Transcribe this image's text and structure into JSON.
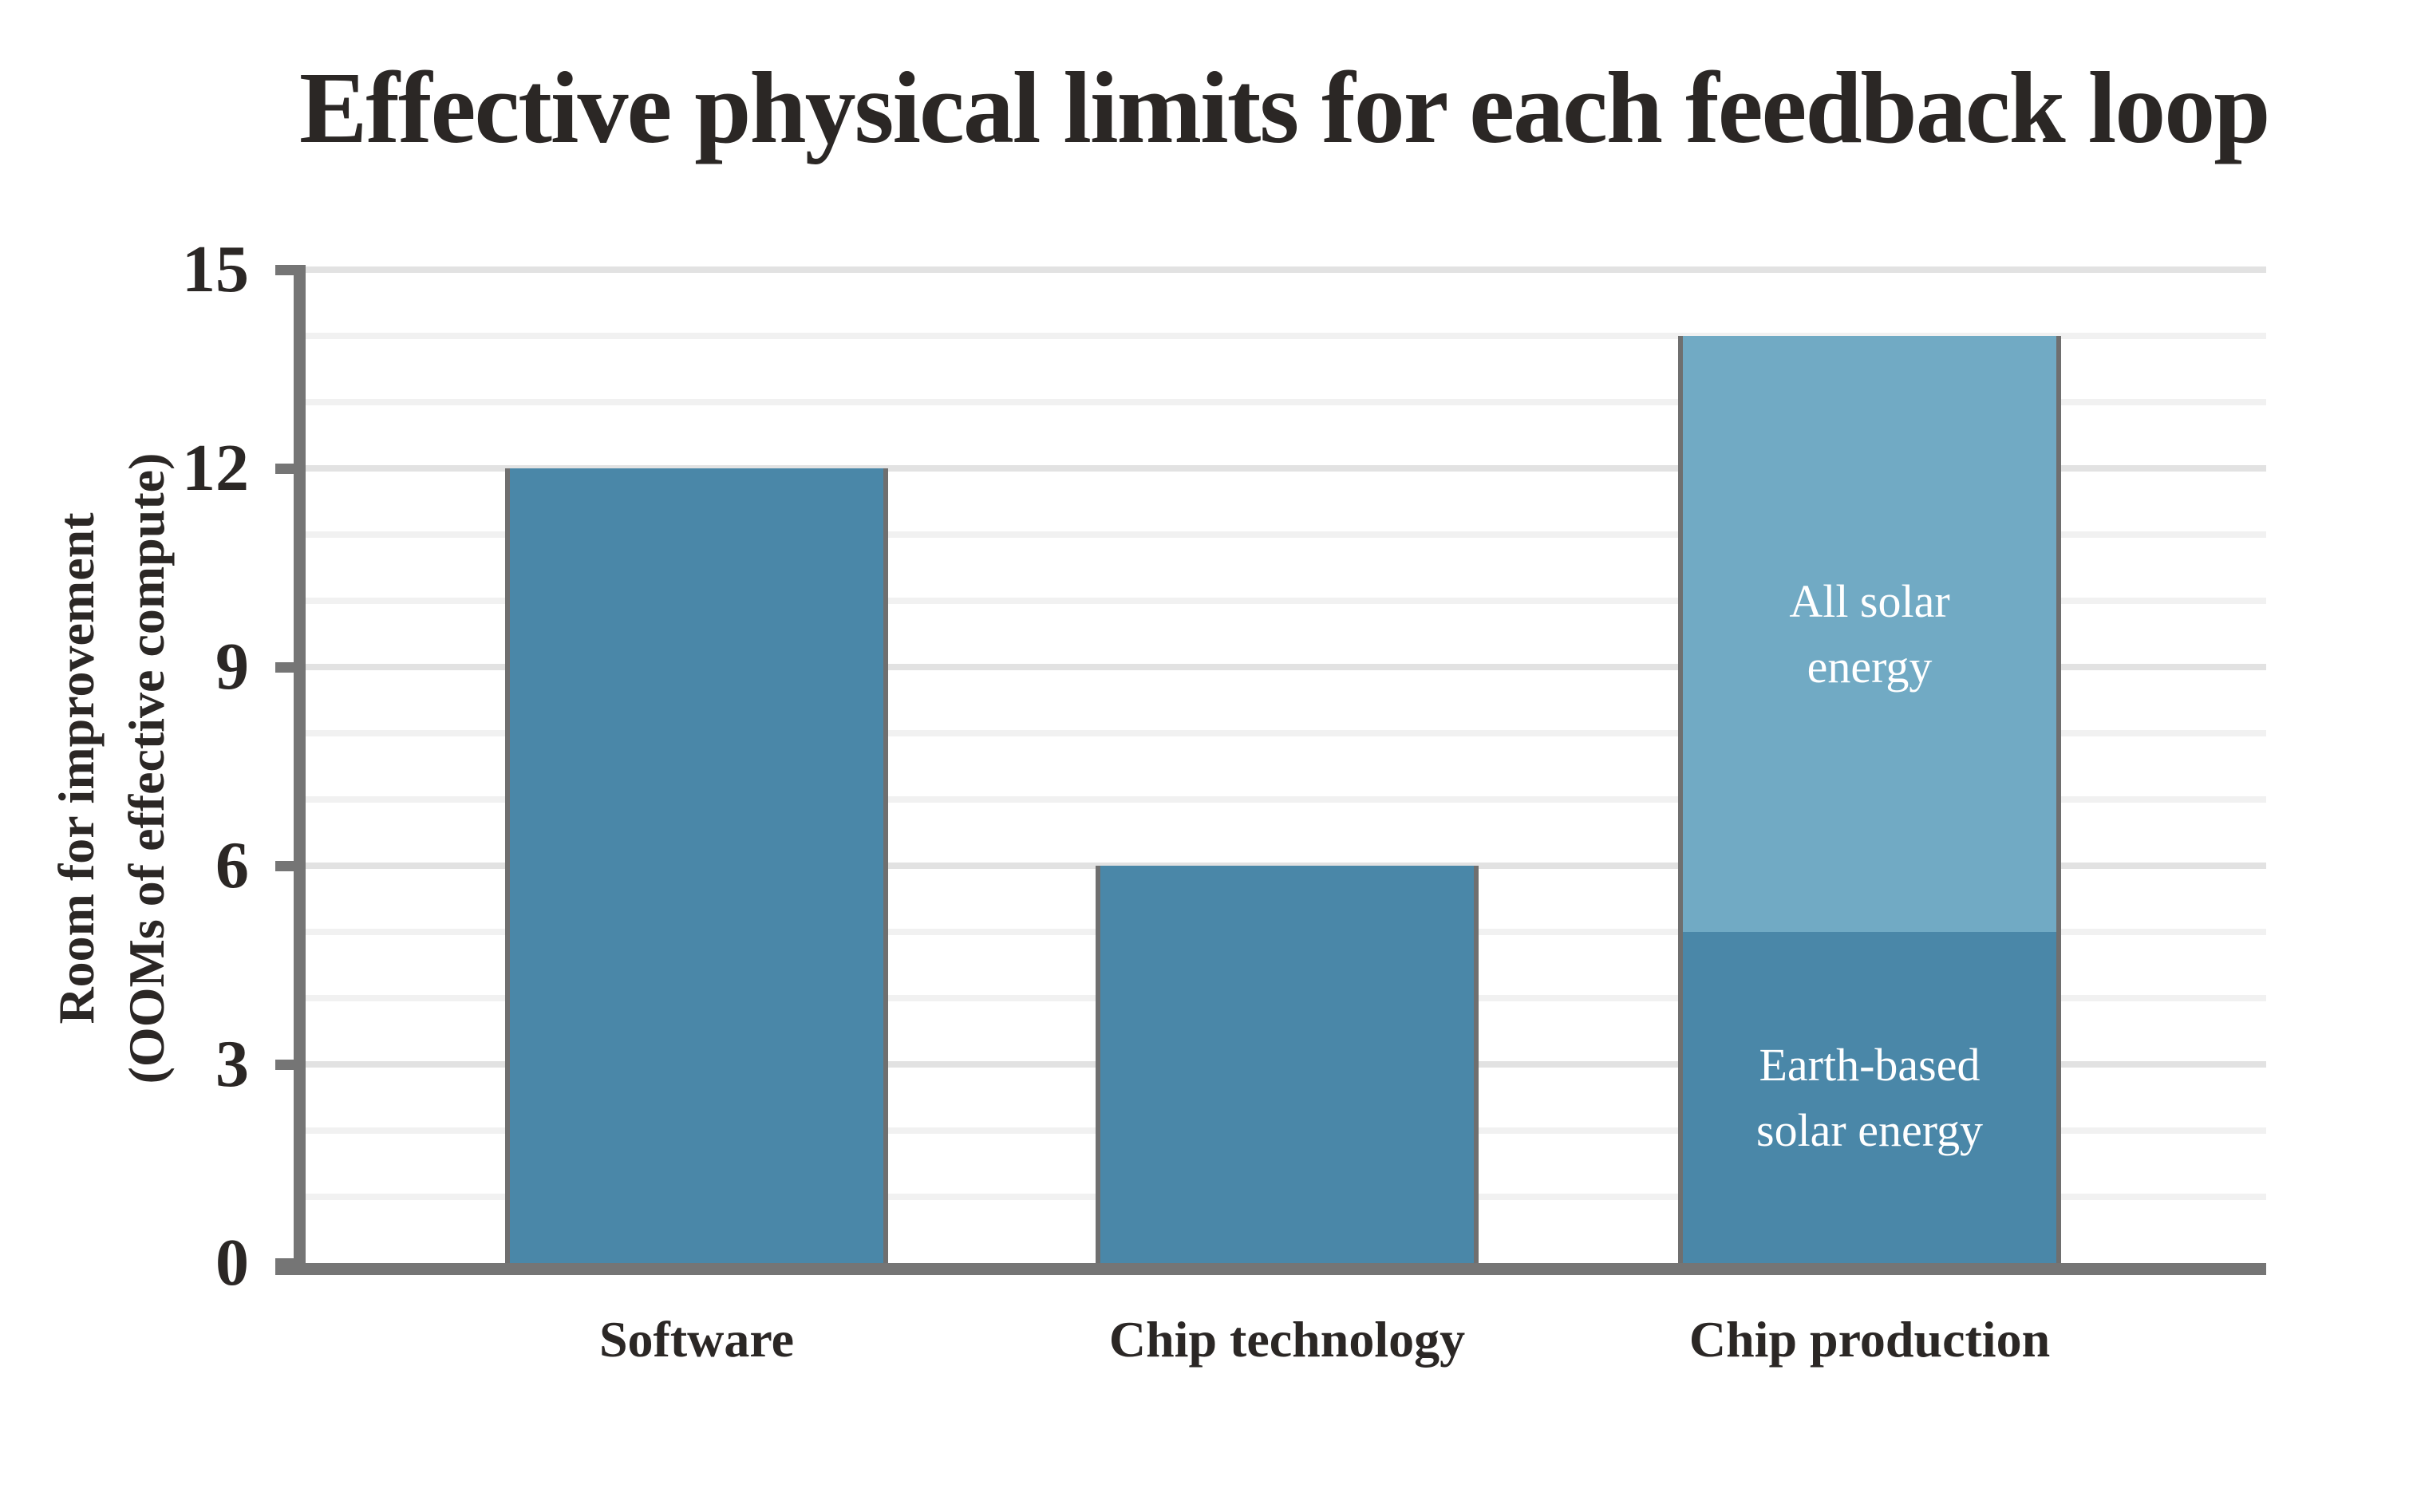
{
  "chart_data": {
    "type": "bar",
    "title": "Effective physical limits for each feedback loop",
    "ylabel_lines": [
      "Room for improvement",
      "(OOMs of effective compute)"
    ],
    "xlabel": "",
    "categories": [
      "Software",
      "Chip technology",
      "Chip production"
    ],
    "bars": [
      {
        "category": "Software",
        "segments": [
          {
            "value": 12,
            "color": "#4a87a8",
            "label_lines": []
          }
        ]
      },
      {
        "category": "Chip technology",
        "segments": [
          {
            "value": 6,
            "color": "#4a87a8",
            "label_lines": []
          }
        ]
      },
      {
        "category": "Chip production",
        "segments": [
          {
            "value": 5,
            "color": "#4a87a8",
            "label_lines": [
              "Earth-based",
              "solar energy"
            ]
          },
          {
            "value": 9,
            "color": "#71aac4",
            "label_lines": [
              "All solar",
              "energy"
            ]
          }
        ]
      }
    ],
    "totals": [
      12,
      6,
      14
    ],
    "ylim": [
      0,
      15
    ],
    "yticks": [
      0,
      3,
      6,
      9,
      12,
      15
    ],
    "gridlines": {
      "on": true,
      "minor_every": 1,
      "major_every": 3
    },
    "legend": "none",
    "colors": {
      "bar_primary": "#4a87a8",
      "bar_secondary": "#71aac4",
      "axis": "#757575",
      "grid_major": "#e2e2e2",
      "grid_minor": "#f1f1f1",
      "bar_edge": "#6f6f6f",
      "text": "#2b2725",
      "bar_label_text": "#ffffff",
      "background": "#ffffff"
    }
  }
}
